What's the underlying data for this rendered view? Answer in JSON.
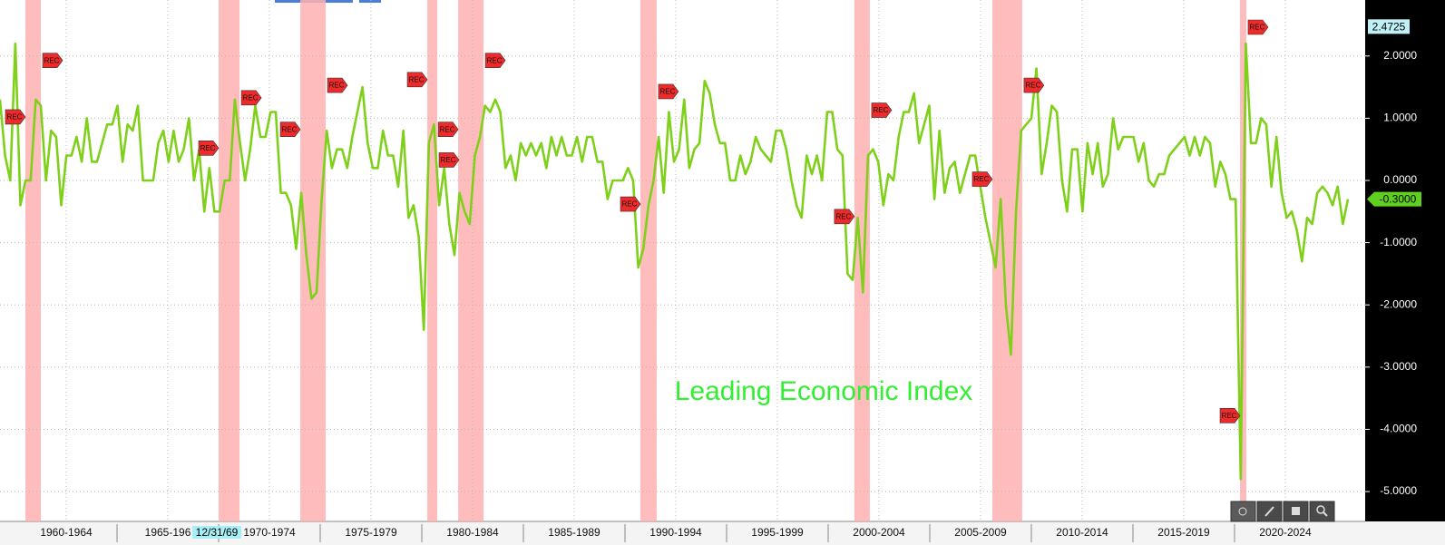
{
  "chart_data": {
    "type": "line",
    "title": "Leading Economic Index",
    "xlim": [
      1959.24,
      2026.43
    ],
    "xticks": [
      {
        "value": 1962.5,
        "label": "1960-1964"
      },
      {
        "value": 1967.5,
        "label": "1965-196"
      },
      {
        "value": 1972.5,
        "label": "1970-1974"
      },
      {
        "value": 1977.5,
        "label": "1975-1979"
      },
      {
        "value": 1982.5,
        "label": "1980-1984"
      },
      {
        "value": 1987.5,
        "label": "1985-1989"
      },
      {
        "value": 1992.5,
        "label": "1990-1994"
      },
      {
        "value": 1997.5,
        "label": "1995-1999"
      },
      {
        "value": 2002.5,
        "label": "2000-2004"
      },
      {
        "value": 2007.5,
        "label": "2005-2009"
      },
      {
        "value": 2012.5,
        "label": "2010-2014"
      },
      {
        "value": 2017.5,
        "label": "2015-2019"
      },
      {
        "value": 2022.5,
        "label": "2020-2024"
      }
    ],
    "ylim": [
      -5.48,
      2.9
    ],
    "yticks": [
      {
        "value": 2,
        "label": "2.0000"
      },
      {
        "value": 1,
        "label": "1.0000"
      },
      {
        "value": 0,
        "label": "0.0000"
      },
      {
        "value": -1,
        "label": "-1.0000"
      },
      {
        "value": -2,
        "label": "-2.0000"
      },
      {
        "value": -3,
        "label": "-3.0000"
      },
      {
        "value": -4,
        "label": "-4.0000"
      },
      {
        "value": -5,
        "label": "-5.0000"
      }
    ],
    "grid": true,
    "top_marker": 2.4725,
    "cursor_label": "12/31/69",
    "recession_label": "REC",
    "recession_color": "#ffb0b0",
    "recessions": [
      {
        "start": 1960.49,
        "end": 1961.25
      },
      {
        "start": 1970.0,
        "end": 1971.03
      },
      {
        "start": 1974.02,
        "end": 1975.27
      },
      {
        "start": 1980.27,
        "end": 1980.76
      },
      {
        "start": 1981.79,
        "end": 1983.04
      },
      {
        "start": 1990.76,
        "end": 1991.56
      },
      {
        "start": 2001.29,
        "end": 2002.05
      },
      {
        "start": 2008.08,
        "end": 2009.55
      },
      {
        "start": 2020.27,
        "end": 2020.58
      }
    ],
    "series": [
      {
        "name": "Leading Economic Index",
        "color": "#7fd01a",
        "last_label": "-0.3000",
        "values": [
          1.3,
          0.4,
          0.0,
          2.2,
          -0.4,
          0.0,
          0.0,
          1.3,
          1.2,
          0.0,
          0.8,
          0.7,
          -0.4,
          0.4,
          0.4,
          0.7,
          0.3,
          1.0,
          0.3,
          0.3,
          0.6,
          0.9,
          0.9,
          1.2,
          0.3,
          0.9,
          0.8,
          1.2,
          0.0,
          0.0,
          0.0,
          0.6,
          0.8,
          0.3,
          0.8,
          0.3,
          0.5,
          1.0,
          0.0,
          0.5,
          -0.5,
          0.2,
          -0.5,
          -0.5,
          0.0,
          0.0,
          1.3,
          0.6,
          0.0,
          0.5,
          1.2,
          0.7,
          0.7,
          1.1,
          1.1,
          -0.2,
          -0.2,
          -0.4,
          -1.1,
          -0.2,
          -1.2,
          -1.9,
          -1.8,
          -0.3,
          0.8,
          0.2,
          0.5,
          0.5,
          0.2,
          0.7,
          1.1,
          1.5,
          0.6,
          0.2,
          0.2,
          0.8,
          0.4,
          0.4,
          -0.1,
          0.8,
          -0.6,
          -0.4,
          -0.9,
          -2.4,
          0.6,
          0.9,
          -0.4,
          0.2,
          -0.7,
          -1.2,
          -0.2,
          -0.5,
          -0.7,
          0.4,
          0.7,
          1.2,
          1.1,
          1.3,
          1.1,
          0.2,
          0.4,
          0.0,
          0.6,
          0.4,
          0.6,
          0.4,
          0.6,
          0.2,
          0.7,
          0.4,
          0.7,
          0.4,
          0.4,
          0.7,
          0.3,
          0.7,
          0.7,
          0.3,
          0.3,
          -0.3,
          0.0,
          0.0,
          0.0,
          0.2,
          0.0,
          -1.4,
          -1.1,
          -0.4,
          0.0,
          0.7,
          -0.2,
          1.1,
          0.3,
          0.5,
          1.3,
          0.2,
          0.5,
          0.6,
          1.6,
          1.4,
          0.9,
          0.6,
          0.6,
          0.0,
          0.0,
          0.4,
          0.1,
          0.3,
          0.7,
          0.5,
          0.4,
          0.3,
          0.8,
          0.8,
          0.5,
          0.0,
          -0.4,
          -0.6,
          0.4,
          0.1,
          0.4,
          0.0,
          1.1,
          1.1,
          0.5,
          0.4,
          -1.5,
          -1.6,
          -0.6,
          -1.8,
          0.4,
          0.5,
          0.3,
          -0.4,
          0.1,
          0.0,
          0.7,
          1.1,
          1.1,
          1.4,
          0.6,
          0.9,
          1.2,
          -0.3,
          0.8,
          -0.2,
          0.2,
          0.3,
          -0.2,
          0.1,
          0.4,
          0.4,
          -0.1,
          -0.6,
          -1.0,
          -1.4,
          -0.3,
          -2.0,
          -2.8,
          -0.5,
          0.8,
          0.9,
          1.0,
          1.8,
          0.1,
          0.6,
          1.2,
          1.1,
          0.0,
          -0.5,
          0.5,
          0.5,
          -0.5,
          0.6,
          0.1,
          0.6,
          -0.1,
          0.1,
          1.0,
          0.5,
          0.7,
          0.7,
          0.7,
          0.3,
          0.6,
          0.0,
          -0.1,
          0.1,
          0.1,
          0.4,
          0.5,
          0.6,
          0.7,
          0.4,
          0.7,
          0.4,
          0.7,
          0.6,
          -0.1,
          0.3,
          0.1,
          -0.3,
          -0.3,
          -4.8,
          2.2,
          0.6,
          0.6,
          1.0,
          0.9,
          -0.1,
          0.7,
          -0.2,
          -0.6,
          -0.5,
          -0.8,
          -1.3,
          -0.6,
          -0.7,
          -0.2,
          -0.1,
          -0.2,
          -0.4,
          -0.1,
          -0.7,
          -0.3
        ]
      }
    ]
  }
}
